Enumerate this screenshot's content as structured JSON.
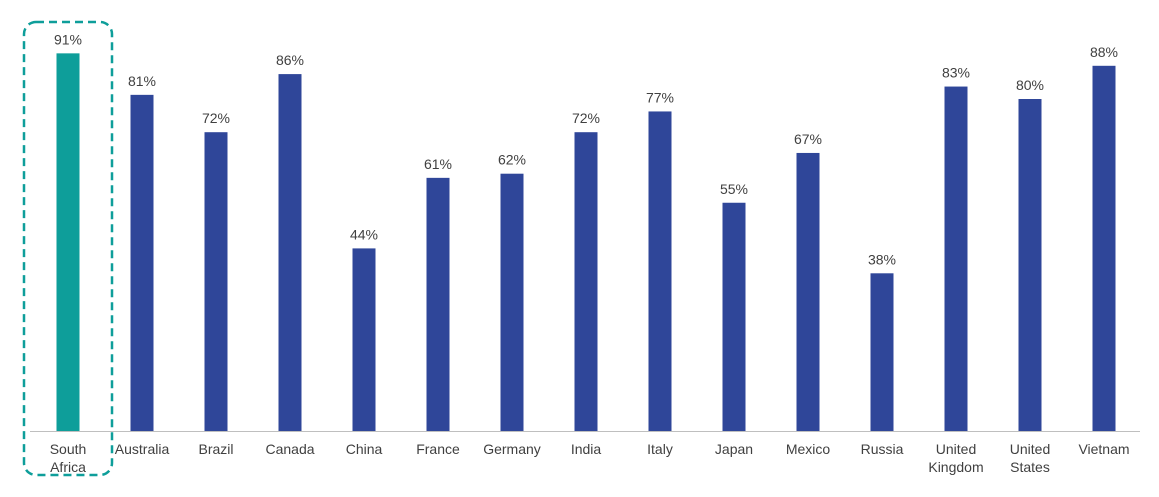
{
  "chart_data": {
    "type": "bar",
    "title": "",
    "xlabel": "",
    "ylabel": "",
    "ylim": [
      0,
      100
    ],
    "grid": false,
    "legend": "none",
    "categories": [
      [
        "South",
        "Africa"
      ],
      [
        "Australia"
      ],
      [
        "Brazil"
      ],
      [
        "Canada"
      ],
      [
        "China"
      ],
      [
        "France"
      ],
      [
        "Germany"
      ],
      [
        "India"
      ],
      [
        "Italy"
      ],
      [
        "Japan"
      ],
      [
        "Mexico"
      ],
      [
        "Russia"
      ],
      [
        "United",
        "Kingdom"
      ],
      [
        "United",
        "States"
      ],
      [
        "Vietnam"
      ]
    ],
    "values": [
      91,
      81,
      72,
      86,
      44,
      61,
      62,
      72,
      77,
      55,
      67,
      38,
      83,
      80,
      88
    ],
    "data_labels": [
      "91%",
      "81%",
      "72%",
      "86%",
      "44%",
      "61%",
      "62%",
      "72%",
      "77%",
      "55%",
      "67%",
      "38%",
      "83%",
      "80%",
      "88%"
    ],
    "highlight_index": 0,
    "colors": {
      "highlight": "#0E9E9A",
      "default": "#2F4699",
      "highlight_box": "#0E9E9A",
      "axis": "#BFBFBF",
      "text": "#404040"
    }
  }
}
